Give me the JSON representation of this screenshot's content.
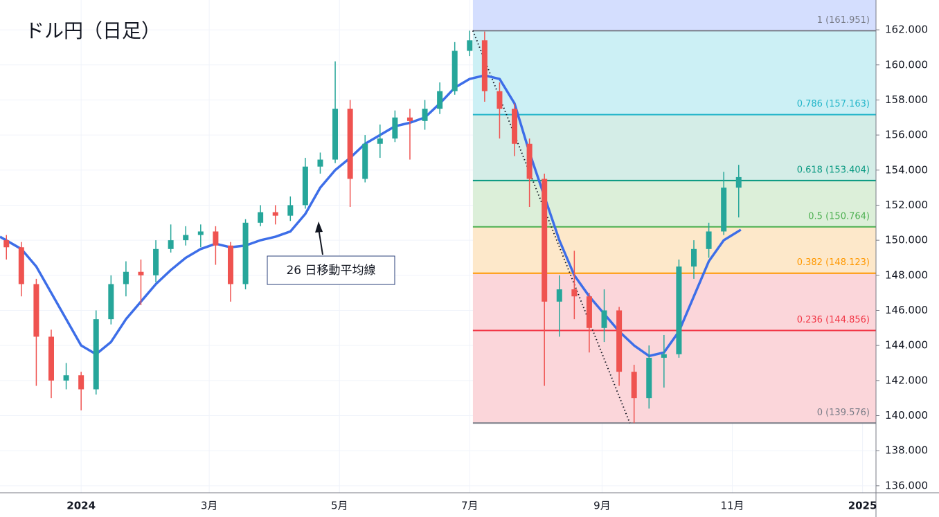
{
  "chart_data": {
    "type": "candlestick",
    "title": "ドル円（日足）",
    "annotation": "26 日移動平均線",
    "up_color": "#26a69a",
    "down_color": "#ef5350",
    "grid": true,
    "xlim": [
      -38,
      372.3
    ],
    "xticks": [
      {
        "value": 0,
        "label": "2024"
      },
      {
        "value": 60,
        "label": "3月"
      },
      {
        "value": 121,
        "label": "5月"
      },
      {
        "value": 182,
        "label": "7月"
      },
      {
        "value": 244,
        "label": "9月"
      },
      {
        "value": 305,
        "label": "11月"
      },
      {
        "value": 366,
        "label": "2025"
      }
    ],
    "ylim": [
      135.6,
      163.7
    ],
    "yticks": [
      {
        "value": 136,
        "label": "136.000"
      },
      {
        "value": 138,
        "label": "138.000"
      },
      {
        "value": 140,
        "label": "140.000"
      },
      {
        "value": 142,
        "label": "142.000"
      },
      {
        "value": 144,
        "label": "144.000"
      },
      {
        "value": 146,
        "label": "146.000"
      },
      {
        "value": 148,
        "label": "148.000"
      },
      {
        "value": 150,
        "label": "150.000"
      },
      {
        "value": 152,
        "label": "152.000"
      },
      {
        "value": 154,
        "label": "154.000"
      },
      {
        "value": 156,
        "label": "156.000"
      },
      {
        "value": 158,
        "label": "158.000"
      },
      {
        "value": 160,
        "label": "160.000"
      },
      {
        "value": 162,
        "label": "162.000"
      }
    ],
    "x": [
      -35,
      -28,
      -21,
      -14,
      -7,
      0,
      7,
      14,
      21,
      28,
      35,
      42,
      49,
      56,
      63,
      70,
      77,
      84,
      91,
      98,
      105,
      112,
      119,
      126,
      133,
      140,
      147,
      154,
      161,
      168,
      175,
      182,
      189,
      196,
      203,
      210,
      217,
      224,
      231,
      238,
      245,
      252,
      259,
      266,
      273,
      280,
      287,
      294,
      301,
      308
    ],
    "open": [
      150.0,
      149.6,
      147.5,
      144.5,
      142.0,
      142.3,
      141.5,
      145.5,
      147.5,
      148.2,
      148.0,
      149.5,
      150.0,
      150.3,
      150.5,
      149.7,
      147.5,
      151.0,
      151.6,
      151.4,
      152.0,
      154.2,
      154.6,
      157.5,
      153.5,
      155.5,
      155.8,
      157.0,
      156.8,
      157.5,
      158.5,
      160.8,
      161.4,
      158.5,
      157.5,
      155.5,
      153.5,
      146.5,
      147.2,
      146.8,
      145.0,
      146.0,
      142.5,
      141.0,
      143.3,
      143.5,
      148.5,
      149.5,
      150.5,
      153.0
    ],
    "high": [
      150.3,
      149.9,
      147.8,
      144.9,
      143.0,
      142.5,
      146.0,
      148.0,
      148.8,
      148.9,
      150.0,
      150.9,
      150.8,
      150.9,
      150.8,
      149.9,
      151.2,
      152.0,
      152.0,
      152.5,
      154.7,
      155.0,
      160.2,
      158.0,
      156.0,
      156.6,
      157.4,
      157.5,
      158.0,
      159.0,
      161.3,
      161.951,
      161.9,
      159.0,
      157.8,
      155.8,
      153.8,
      148.0,
      149.4,
      147.0,
      147.2,
      146.2,
      142.9,
      144.0,
      144.6,
      148.9,
      150.0,
      151.0,
      153.9,
      154.3
    ],
    "low": [
      148.9,
      146.8,
      141.7,
      141.0,
      141.5,
      140.3,
      141.2,
      145.2,
      146.8,
      146.3,
      147.6,
      149.3,
      149.7,
      149.6,
      148.6,
      146.5,
      147.2,
      150.8,
      150.9,
      151.1,
      151.8,
      153.8,
      154.4,
      151.9,
      153.3,
      154.7,
      155.6,
      154.6,
      156.3,
      157.2,
      158.3,
      160.5,
      157.9,
      155.8,
      154.8,
      151.9,
      141.7,
      144.5,
      145.5,
      143.6,
      144.2,
      141.7,
      139.576,
      140.4,
      141.6,
      143.3,
      147.8,
      149.0,
      150.3,
      151.3
    ],
    "close": [
      149.6,
      147.5,
      144.5,
      142.0,
      142.3,
      141.5,
      145.5,
      147.5,
      148.2,
      148.0,
      149.5,
      150.0,
      150.3,
      150.5,
      149.7,
      147.5,
      151.0,
      151.6,
      151.4,
      152.0,
      154.2,
      154.6,
      157.5,
      153.5,
      155.5,
      155.8,
      157.0,
      156.8,
      157.5,
      158.5,
      160.8,
      161.4,
      158.5,
      157.5,
      155.5,
      153.5,
      146.5,
      147.2,
      146.8,
      145.0,
      146.0,
      142.5,
      141.0,
      143.3,
      143.5,
      148.5,
      149.5,
      150.5,
      153.0,
      153.6
    ],
    "ma": {
      "color": "#3d6ee8",
      "x": [
        -38,
        -28,
        -21,
        -14,
        -7,
        0,
        7,
        14,
        21,
        28,
        35,
        42,
        49,
        56,
        63,
        70,
        77,
        84,
        91,
        98,
        105,
        112,
        119,
        126,
        133,
        140,
        147,
        154,
        161,
        168,
        175,
        182,
        189,
        196,
        203,
        210,
        217,
        224,
        231,
        238,
        245,
        252,
        259,
        266,
        273,
        280,
        287,
        294,
        301,
        309
      ],
      "values": [
        150.2,
        149.5,
        148.5,
        147.0,
        145.5,
        144.0,
        143.5,
        144.2,
        145.5,
        146.5,
        147.5,
        148.3,
        149.0,
        149.5,
        149.8,
        149.6,
        149.7,
        150.0,
        150.2,
        150.5,
        151.5,
        153.0,
        154.0,
        154.7,
        155.5,
        156.0,
        156.5,
        156.7,
        157.0,
        157.8,
        158.7,
        159.2,
        159.4,
        159.2,
        157.8,
        155.0,
        152.5,
        150.0,
        148.0,
        146.8,
        145.8,
        144.8,
        144.0,
        143.4,
        143.6,
        144.8,
        146.8,
        148.8,
        150.0,
        150.6
      ]
    },
    "fib": {
      "start": 183.5,
      "end": 257,
      "top_color": "#d4defe",
      "levels": [
        {
          "value": 161.951,
          "label": "1 (161.951)",
          "color": "#787b86",
          "band": "#e3e4e8"
        },
        {
          "value": 157.163,
          "label": "0.786 (157.163)",
          "color": "#22b5c9",
          "band": "#ccf0f5"
        },
        {
          "value": 153.404,
          "label": "0.618 (153.404)",
          "color": "#089981",
          "band": "#d4ede7"
        },
        {
          "value": 150.764,
          "label": "0.5 (150.764)",
          "color": "#4caf50",
          "band": "#dcefd9"
        },
        {
          "value": 148.123,
          "label": "0.382 (148.123)",
          "color": "#ff9800",
          "band": "#fde8ca"
        },
        {
          "value": 144.856,
          "label": "0.236 (144.856)",
          "color": "#f23645",
          "band": "#fbd6da"
        },
        {
          "value": 139.576,
          "label": "0 (139.576)",
          "color": "#787b86",
          "band": "#fbd6da"
        }
      ]
    }
  }
}
